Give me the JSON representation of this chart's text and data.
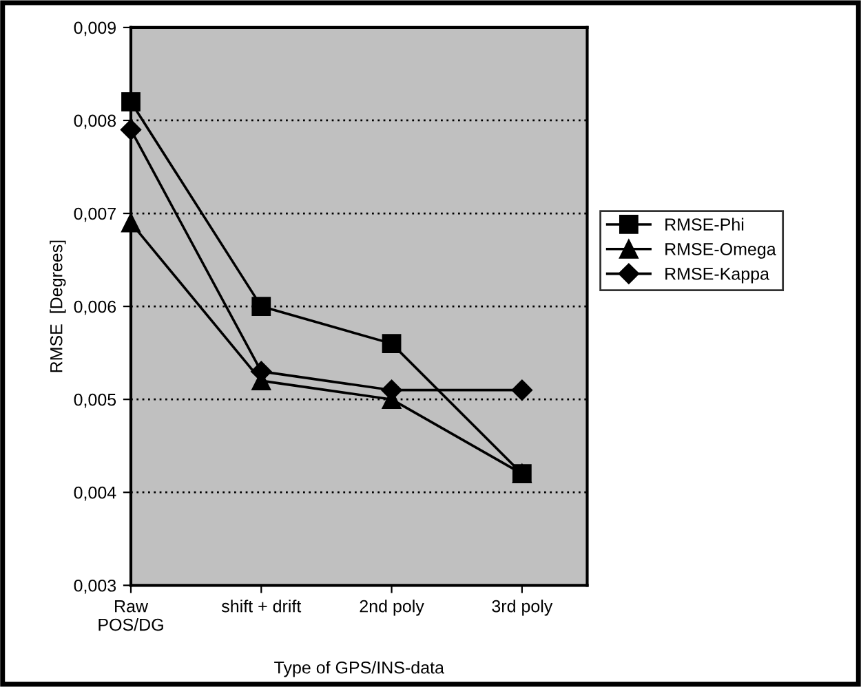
{
  "chart_data": {
    "type": "line",
    "xlabel": "Type of GPS/INS-data",
    "ylabel": "RMSE  [Degrees]",
    "categories": [
      "Raw\nPOS/DG",
      "shift + drift",
      "2nd poly",
      "3rd poly"
    ],
    "series": [
      {
        "name": "RMSE-Phi",
        "color": "#000000",
        "marker": "square",
        "values": [
          0.0082,
          0.006,
          0.0056,
          0.0042
        ]
      },
      {
        "name": "RMSE-Omega",
        "color": "#000000",
        "marker": "triangle",
        "values": [
          0.0069,
          0.0052,
          0.005,
          0.0042
        ]
      },
      {
        "name": "RMSE-Kappa",
        "color": "#000000",
        "marker": "diamond",
        "values": [
          0.0079,
          0.0053,
          0.0051,
          0.0051
        ]
      }
    ],
    "ylim": [
      0.003,
      0.009
    ],
    "yticks": [
      {
        "value": 0.003,
        "label": "0,003"
      },
      {
        "value": 0.004,
        "label": "0,004"
      },
      {
        "value": 0.005,
        "label": "0,005"
      },
      {
        "value": 0.006,
        "label": "0,006"
      },
      {
        "value": 0.007,
        "label": "0,007"
      },
      {
        "value": 0.008,
        "label": "0,008"
      },
      {
        "value": 0.009,
        "label": "0,009"
      }
    ],
    "grid": "y",
    "legend": "right",
    "line_style": "solid"
  }
}
